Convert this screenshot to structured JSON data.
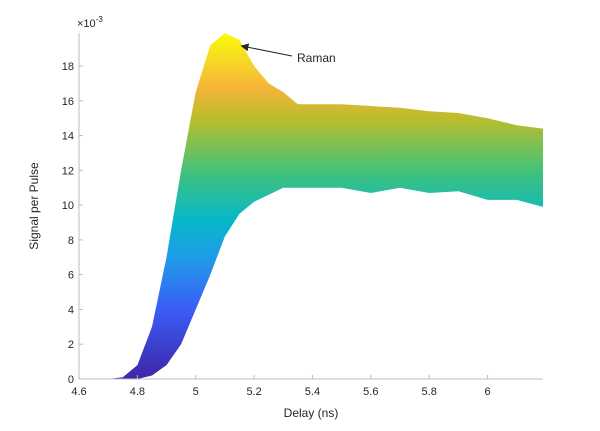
{
  "chart_data": {
    "type": "area",
    "title": "",
    "xlabel": "Delay (ns)",
    "ylabel": "Signal per Pulse",
    "y_exponent_label": "×10",
    "y_exponent": "-3",
    "xlim": [
      4.6,
      6.19
    ],
    "ylim": [
      0,
      0.0199
    ],
    "x_ticks": [
      4.6,
      4.8,
      5,
      5.2,
      5.4,
      5.6,
      5.8,
      6
    ],
    "x_tick_labels": [
      "4.6",
      "4.8",
      "5",
      "5.2",
      "5.4",
      "5.6",
      "5.8",
      "6"
    ],
    "y_ticks": [
      0,
      0.002,
      0.004,
      0.006,
      0.008,
      0.01,
      0.012,
      0.014,
      0.016,
      0.018
    ],
    "y_tick_labels": [
      "0",
      "2",
      "4",
      "6",
      "8",
      "10",
      "12",
      "14",
      "16",
      "18"
    ],
    "grid": false,
    "colormap": "parula (vertical, by signal value)",
    "colors": [
      "#3e26a8",
      "#3a5cf5",
      "#1f9ce8",
      "#06b8c9",
      "#42c27a",
      "#b9bd2c",
      "#f5b43a",
      "#f9fb0e"
    ],
    "upper": {
      "x": [
        4.6,
        4.7,
        4.75,
        4.8,
        4.85,
        4.9,
        4.95,
        5.0,
        5.05,
        5.1,
        5.15,
        5.2,
        5.25,
        5.3,
        5.35,
        5.4,
        5.5,
        5.6,
        5.7,
        5.8,
        5.9,
        6.0,
        6.1,
        6.19
      ],
      "y": [
        0,
        0,
        0.0001,
        0.0008,
        0.003,
        0.007,
        0.012,
        0.0165,
        0.0192,
        0.0199,
        0.0195,
        0.018,
        0.017,
        0.0165,
        0.0158,
        0.0158,
        0.0158,
        0.0157,
        0.0156,
        0.0154,
        0.0153,
        0.015,
        0.0146,
        0.0144
      ]
    },
    "lower": {
      "x": [
        4.6,
        4.8,
        4.85,
        4.9,
        4.95,
        5.0,
        5.05,
        5.1,
        5.15,
        5.2,
        5.25,
        5.3,
        5.4,
        5.5,
        5.6,
        5.7,
        5.8,
        5.9,
        6.0,
        6.1,
        6.19
      ],
      "y": [
        0,
        0,
        0.0002,
        0.0008,
        0.002,
        0.004,
        0.006,
        0.0082,
        0.0095,
        0.0102,
        0.0106,
        0.011,
        0.011,
        0.011,
        0.0107,
        0.011,
        0.0107,
        0.0108,
        0.0103,
        0.0103,
        0.0099
      ]
    },
    "annotations": [
      {
        "text": "Raman",
        "arrow_to": {
          "x": 5.15,
          "y": 0.0195
        }
      }
    ]
  }
}
